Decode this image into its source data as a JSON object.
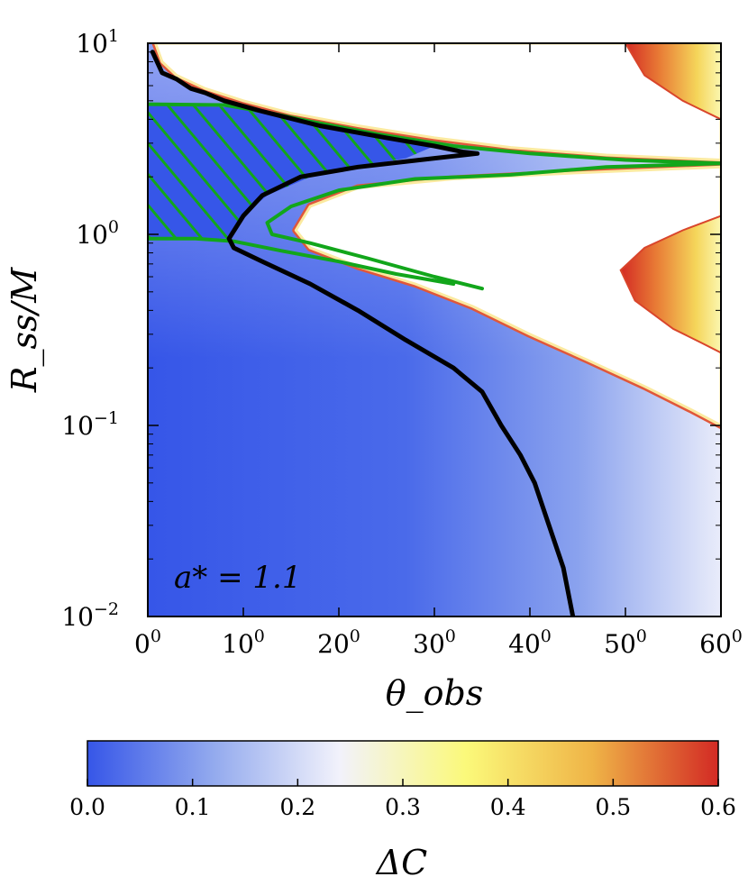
{
  "chart_data": {
    "type": "heatmap",
    "xlabel": "θ_obs",
    "ylabel": "R_ss/M",
    "xlim": [
      0,
      60
    ],
    "ylim": [
      0.01,
      10
    ],
    "yscale": "log",
    "xticks": [
      {
        "value": 0,
        "base": "0",
        "sup": "0"
      },
      {
        "value": 10,
        "base": "10",
        "sup": "0"
      },
      {
        "value": 20,
        "base": "20",
        "sup": "0"
      },
      {
        "value": 30,
        "base": "30",
        "sup": "0"
      },
      {
        "value": 40,
        "base": "40",
        "sup": "0"
      },
      {
        "value": 50,
        "base": "50",
        "sup": "0"
      },
      {
        "value": 60,
        "base": "60",
        "sup": "0"
      }
    ],
    "yticks": [
      {
        "value": 10,
        "base": "10",
        "sup": "1"
      },
      {
        "value": 1,
        "base": "10",
        "sup": "0"
      },
      {
        "value": 0.1,
        "base": "10",
        "sup": "−1"
      },
      {
        "value": 0.01,
        "base": "10",
        "sup": "−2"
      }
    ],
    "annotation": "a* = 1.1",
    "colorbar": {
      "label": "ΔC",
      "range": [
        0,
        0.6
      ],
      "ticks": [
        "0.0",
        "0.1",
        "0.2",
        "0.3",
        "0.4",
        "0.5",
        "0.6"
      ],
      "colors": [
        "#3656e8",
        "#93aaee",
        "#f2f2fb",
        "#fbf97a",
        "#efb447",
        "#d32a24"
      ]
    },
    "line_colors": {
      "black": "#000000",
      "green": "#12a61b"
    },
    "black_contour": [
      [
        0.5,
        9.0
      ],
      [
        1.5,
        7.0
      ],
      [
        3.0,
        6.5
      ],
      [
        4.5,
        5.8
      ],
      [
        6.0,
        5.5
      ],
      [
        8.0,
        5.0
      ],
      [
        12.0,
        4.4
      ],
      [
        18.0,
        3.7
      ],
      [
        25.0,
        3.2
      ],
      [
        30.0,
        2.9
      ],
      [
        33.0,
        2.7
      ],
      [
        34.5,
        2.65
      ],
      [
        30.0,
        2.5
      ],
      [
        22.0,
        2.25
      ],
      [
        16.0,
        2.0
      ],
      [
        12.0,
        1.6
      ],
      [
        10.0,
        1.25
      ],
      [
        8.5,
        0.95
      ],
      [
        9.0,
        0.85
      ],
      [
        12.0,
        0.72
      ],
      [
        17.0,
        0.55
      ],
      [
        22.0,
        0.4
      ],
      [
        27.0,
        0.28
      ],
      [
        32.0,
        0.2
      ],
      [
        35.0,
        0.15
      ],
      [
        37.0,
        0.1
      ],
      [
        39.0,
        0.07
      ],
      [
        40.5,
        0.05
      ],
      [
        42.0,
        0.03
      ],
      [
        43.5,
        0.018
      ],
      [
        44.5,
        0.01
      ]
    ],
    "green_contours": [
      [
        [
          0,
          4.8
        ],
        [
          8.0,
          4.75
        ],
        [
          13.0,
          4.3
        ],
        [
          17.0,
          3.9
        ],
        [
          24.0,
          3.35
        ],
        [
          32.0,
          2.9
        ],
        [
          40.0,
          2.65
        ],
        [
          50.0,
          2.45
        ],
        [
          60.0,
          2.35
        ]
      ],
      [
        [
          60.0,
          2.35
        ],
        [
          48.0,
          2.25
        ],
        [
          38.0,
          2.05
        ],
        [
          28.0,
          1.95
        ],
        [
          20.0,
          1.7
        ],
        [
          15.0,
          1.4
        ],
        [
          12.5,
          1.15
        ],
        [
          13.0,
          1.0
        ],
        [
          17.0,
          0.9
        ],
        [
          23.0,
          0.75
        ],
        [
          30.0,
          0.6
        ],
        [
          35.0,
          0.52
        ]
      ],
      [
        [
          0,
          0.95
        ],
        [
          5.0,
          0.95
        ],
        [
          9.0,
          0.92
        ],
        [
          14.0,
          0.82
        ],
        [
          20.0,
          0.72
        ],
        [
          26.0,
          0.62
        ],
        [
          32.0,
          0.55
        ]
      ]
    ],
    "hatch_region": [
      [
        0,
        4.8
      ],
      [
        10.0,
        4.6
      ],
      [
        18.0,
        3.8
      ],
      [
        25.0,
        3.2
      ],
      [
        30.0,
        2.9
      ],
      [
        27.0,
        2.5
      ],
      [
        18.0,
        2.1
      ],
      [
        12.5,
        1.6
      ],
      [
        9.5,
        1.2
      ],
      [
        8.5,
        0.95
      ],
      [
        0,
        0.95
      ]
    ],
    "white_regions": [
      [
        [
          2,
          10
        ],
        [
          60,
          10
        ],
        [
          60,
          2.45
        ],
        [
          48,
          2.6
        ],
        [
          38,
          2.85
        ],
        [
          30,
          3.2
        ],
        [
          22,
          3.7
        ],
        [
          15,
          4.3
        ],
        [
          10,
          5.0
        ],
        [
          6,
          5.8
        ],
        [
          3,
          6.8
        ],
        [
          1.5,
          8
        ],
        [
          0.8,
          10
        ]
      ],
      [
        [
          60,
          2.25
        ],
        [
          45,
          2.1
        ],
        [
          32,
          1.95
        ],
        [
          22,
          1.75
        ],
        [
          17,
          1.4
        ],
        [
          15.5,
          1.05
        ],
        [
          17,
          0.85
        ],
        [
          22,
          0.68
        ],
        [
          28,
          0.55
        ],
        [
          34,
          0.42
        ],
        [
          40,
          0.3
        ],
        [
          46,
          0.22
        ],
        [
          52,
          0.16
        ],
        [
          57,
          0.12
        ],
        [
          60,
          0.1
        ]
      ]
    ],
    "warm_blobs": [
      [
        [
          50,
          10
        ],
        [
          60,
          10
        ],
        [
          60,
          4.0
        ],
        [
          56,
          5.0
        ],
        [
          52,
          6.8
        ]
      ],
      [
        [
          60,
          1.25
        ],
        [
          56,
          1.05
        ],
        [
          52,
          0.85
        ],
        [
          49.5,
          0.65
        ],
        [
          51,
          0.45
        ],
        [
          55,
          0.32
        ],
        [
          58,
          0.27
        ],
        [
          60,
          0.24
        ]
      ]
    ]
  }
}
